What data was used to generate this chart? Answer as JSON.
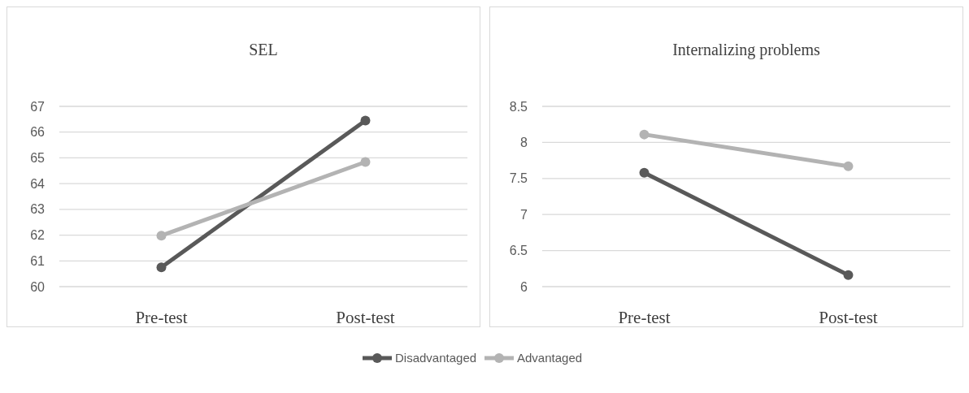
{
  "chart_data": [
    {
      "type": "line",
      "title": "SEL",
      "categories": [
        "Pre-test",
        "Post-test"
      ],
      "series": [
        {
          "name": "Disadvantaged",
          "color": "#595959",
          "values": [
            60.75,
            66.45
          ]
        },
        {
          "name": "Advantaged",
          "color": "#b3b3b3",
          "values": [
            61.98,
            64.84
          ]
        }
      ],
      "ylim": [
        60,
        67
      ],
      "yticks": [
        60,
        61,
        62,
        63,
        64,
        65,
        66,
        67
      ],
      "grid": "y",
      "marker": "circle",
      "legend": "bottom"
    },
    {
      "type": "line",
      "title": "Internalizing problems",
      "categories": [
        "Pre-test",
        "Post-test"
      ],
      "series": [
        {
          "name": "Disadvantaged",
          "color": "#595959",
          "values": [
            7.58,
            6.16
          ]
        },
        {
          "name": "Advantaged",
          "color": "#b3b3b3",
          "values": [
            8.11,
            7.67
          ]
        }
      ],
      "ylim": [
        6,
        8.5
      ],
      "yticks": [
        6,
        {
          "value": 6.5,
          "label": "6.5"
        },
        7,
        {
          "value": 7.5,
          "label": "7.5"
        },
        8,
        {
          "value": 8.5,
          "label": "8.5"
        }
      ],
      "grid": "y",
      "marker": "circle"
    }
  ]
}
